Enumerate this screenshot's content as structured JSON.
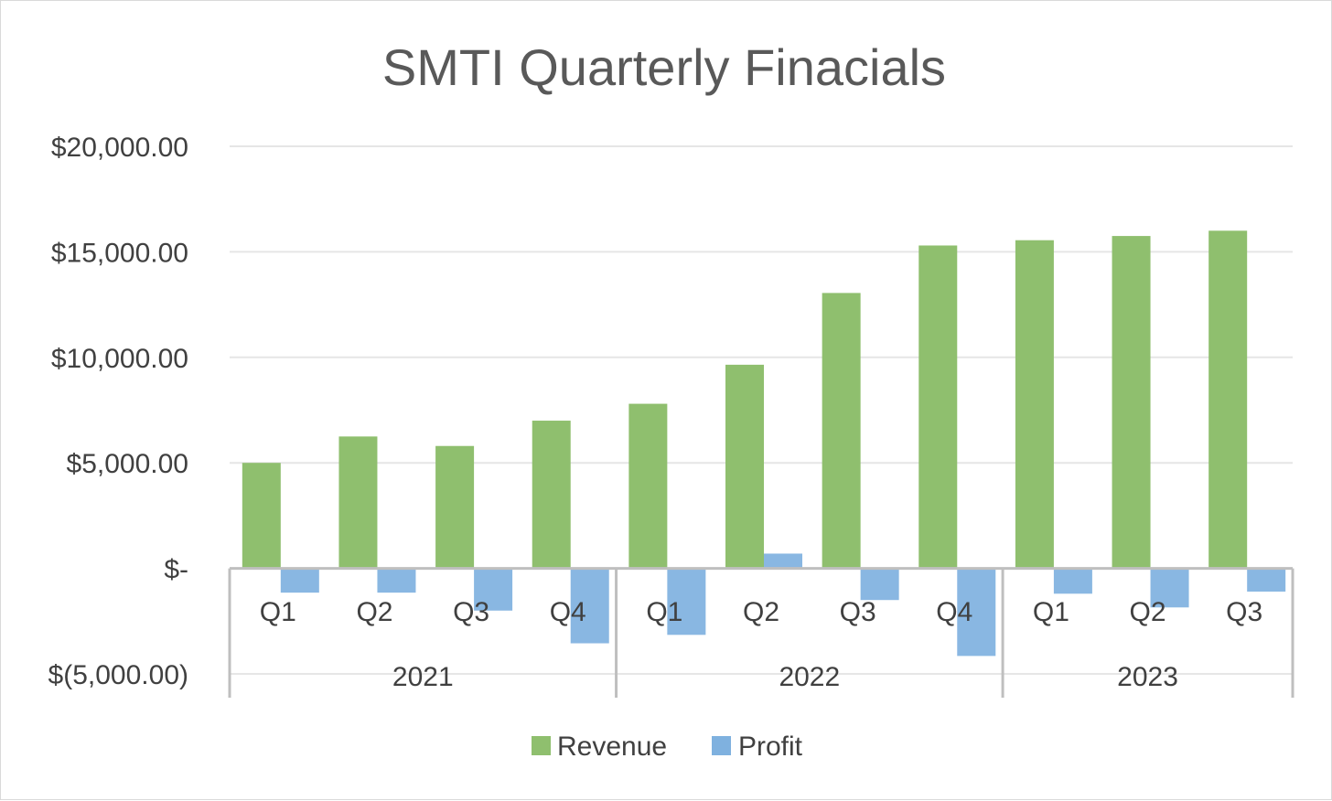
{
  "chart_data": {
    "type": "bar",
    "title": "SMTI Quarterly Finacials",
    "xlabel": "",
    "ylabel": "",
    "ylim": [
      -5000,
      20000
    ],
    "y_ticks": [
      20000,
      15000,
      10000,
      5000,
      0,
      -5000
    ],
    "y_tick_labels": [
      "$20,000.00",
      "$15,000.00",
      "$10,000.00",
      "$5,000.00",
      "$-",
      "$(5,000.00)"
    ],
    "grid": true,
    "legend_position": "bottom",
    "categories": [
      "Q1",
      "Q2",
      "Q3",
      "Q4",
      "Q1",
      "Q2",
      "Q3",
      "Q4",
      "Q1",
      "Q2",
      "Q3"
    ],
    "groups": [
      {
        "label": "2021",
        "count": 4
      },
      {
        "label": "2022",
        "count": 4
      },
      {
        "label": "2023",
        "count": 3
      }
    ],
    "series": [
      {
        "name": "Revenue",
        "color": "#8fbf6e",
        "values": [
          5000,
          6250,
          5800,
          7000,
          7800,
          9650,
          13050,
          15300,
          15550,
          15750,
          16000
        ]
      },
      {
        "name": "Profit",
        "color": "#7fb1df",
        "values": [
          -1150,
          -1150,
          -2000,
          -3550,
          -3150,
          700,
          -1500,
          -4150,
          -1200,
          -1850,
          -1100
        ]
      }
    ]
  }
}
